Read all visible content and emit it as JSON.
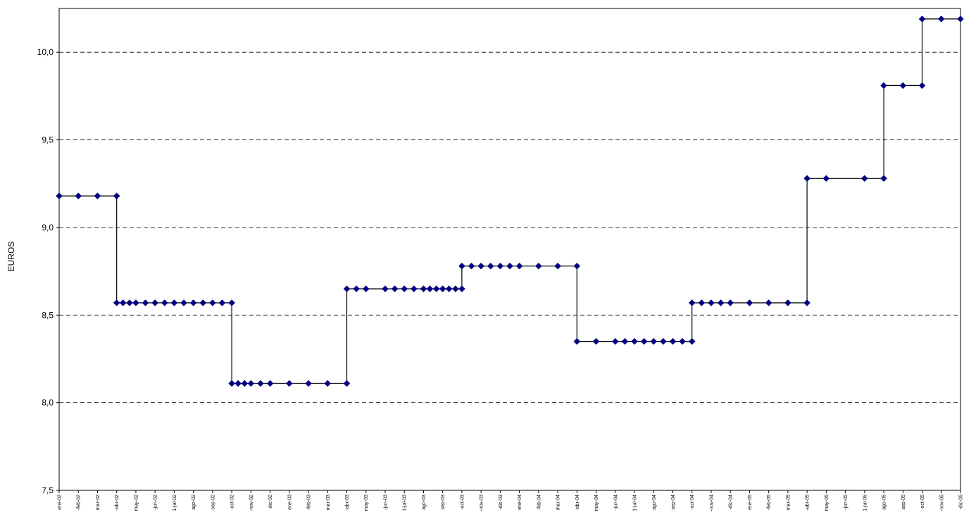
{
  "chart_data": {
    "type": "line",
    "ylabel": "EUROS",
    "xlabel": "",
    "title": "",
    "ylim": [
      7.5,
      10.25
    ],
    "yticks": [
      "7,5",
      "8,0",
      "8,5",
      "9,0",
      "9,5",
      "10,0"
    ],
    "ytick_values": [
      7.5,
      8.0,
      8.5,
      9.0,
      9.5,
      10.0
    ],
    "grid": "horizontal dashed",
    "line_color": "#000000",
    "marker_color": "#000080",
    "x_range": [
      0,
      46
    ],
    "x_tick_labels": [
      "ene-02",
      "-feb-02",
      "mar-02",
      "-abr-02",
      "may-02",
      "-jun-02",
      "1-jul-02",
      "ago-02",
      "sep-02",
      "-oct-02",
      "-nov-02",
      "-dic-02",
      "ene-03",
      "-feb-03",
      "mar-03",
      "-abr-03",
      "may-03",
      "-jun-03",
      "1-jul-03",
      "ago-03",
      "sep-03",
      "-oct-03",
      "-nov-03",
      "-dic-03",
      "ene-04",
      "-feb-04",
      "mar-04",
      "-abr-04",
      "may-04",
      "-jun-04",
      "1-jul-04",
      "ago-04",
      "sep-04",
      "-oct-04",
      "-nov-04",
      "-dic-04",
      "ene-05",
      "-feb-05",
      "mar-05",
      "-abr-05",
      "may-05",
      "-jun-05",
      "1-jul-05",
      "ago-05",
      "sep-05",
      "-oct-05",
      "-nov-05",
      "-dic-05"
    ],
    "x": [
      0,
      1,
      2,
      3,
      3,
      3.33,
      3.67,
      4,
      4.5,
      5,
      5.5,
      6,
      6.5,
      7,
      7.5,
      8,
      8.5,
      9,
      9,
      9.33,
      9.67,
      10,
      10.5,
      11,
      12,
      13,
      14,
      15,
      15,
      15.5,
      16,
      17,
      17.5,
      18,
      18.5,
      19,
      19.33,
      19.67,
      20,
      20.33,
      20.67,
      21,
      21,
      21.5,
      22,
      22.5,
      23,
      23.5,
      24,
      25,
      26,
      27,
      27,
      28,
      29,
      29.5,
      30,
      30.5,
      31,
      31.5,
      32,
      32.5,
      33,
      33,
      33.5,
      34,
      34.5,
      35,
      36,
      37,
      38,
      39,
      39,
      40,
      42,
      43,
      43,
      44,
      45,
      45,
      46,
      47
    ],
    "y": [
      9.18,
      9.18,
      9.18,
      9.18,
      8.57,
      8.57,
      8.57,
      8.57,
      8.57,
      8.57,
      8.57,
      8.57,
      8.57,
      8.57,
      8.57,
      8.57,
      8.57,
      8.57,
      8.11,
      8.11,
      8.11,
      8.11,
      8.11,
      8.11,
      8.11,
      8.11,
      8.11,
      8.11,
      8.65,
      8.65,
      8.65,
      8.65,
      8.65,
      8.65,
      8.65,
      8.65,
      8.65,
      8.65,
      8.65,
      8.65,
      8.65,
      8.65,
      8.78,
      8.78,
      8.78,
      8.78,
      8.78,
      8.78,
      8.78,
      8.78,
      8.78,
      8.78,
      8.35,
      8.35,
      8.35,
      8.35,
      8.35,
      8.35,
      8.35,
      8.35,
      8.35,
      8.35,
      8.35,
      8.57,
      8.57,
      8.57,
      8.57,
      8.57,
      8.57,
      8.57,
      8.57,
      8.57,
      9.28,
      9.28,
      9.28,
      9.28,
      9.81,
      9.81,
      9.81,
      10.19,
      10.19,
      10.19
    ]
  }
}
